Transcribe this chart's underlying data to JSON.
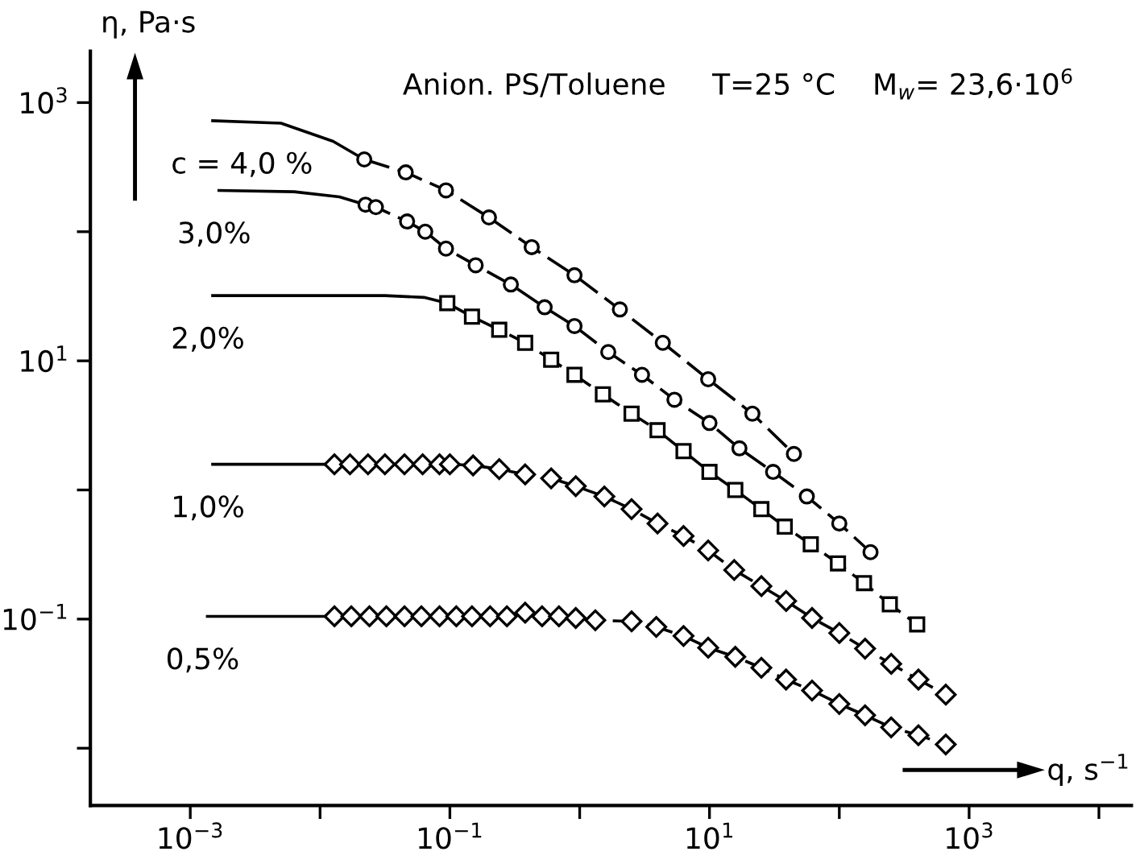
{
  "chart_data": {
    "type": "line",
    "title": "Anion. PS/Toluene     T=25 °C    M$_{w}$= 23,6·10$^{6}$",
    "xlabel": "q, s$^{−1}$",
    "ylabel": "η, Pa·s",
    "log": "xy",
    "grid": false,
    "legend": false,
    "xlim": [
      0.00017,
      17800
    ],
    "ylim": [
      0.0036,
      2500
    ],
    "xticks": [
      {
        "value": 0.001,
        "label": "10$^{−3}$"
      },
      {
        "value": 0.01,
        "label": null
      },
      {
        "value": 0.1,
        "label": "10$^{−1}$"
      },
      {
        "value": 1,
        "label": null
      },
      {
        "value": 10,
        "label": "10$^{1}$"
      },
      {
        "value": 100,
        "label": null
      },
      {
        "value": 1000,
        "label": "10$^{3}$"
      },
      {
        "value": 10000,
        "label": null
      }
    ],
    "yticks": [
      {
        "value": 0.01,
        "label": null
      },
      {
        "value": 0.1,
        "label": "10$^{−1}$"
      },
      {
        "value": 1,
        "label": null
      },
      {
        "value": 10,
        "label": "10$^{1}$"
      },
      {
        "value": 100,
        "label": null
      },
      {
        "value": 1000,
        "label": "10$^{3}$"
      }
    ],
    "series": [
      {
        "name": "c = 4,0 %",
        "color": "#000000",
        "line_style": "solid",
        "marker": "none",
        "x": [
          0.00145,
          0.005,
          0.0126,
          0.0219
        ],
        "values": [
          724,
          692,
          501,
          363
        ]
      },
      {
        "color": "#000000",
        "line_style": "dashed",
        "marker": "circle",
        "x": [
          0.0219,
          0.0457,
          0.0933,
          0.2,
          0.427,
          0.912,
          2.04,
          4.37,
          9.77,
          21.4,
          44.7
        ],
        "values": [
          363,
          288,
          209,
          129,
          76,
          46,
          25,
          13.8,
          7.2,
          3.9,
          1.9
        ]
      },
      {
        "name": "3,0%",
        "color": "#000000",
        "line_style": "solid",
        "marker": "none",
        "x": [
          0.00162,
          0.0063,
          0.0141,
          0.0224
        ],
        "values": [
          209,
          204,
          186,
          162
        ]
      },
      {
        "color": "#000000",
        "line_style": "dashed",
        "marker": "circle",
        "x": [
          0.0224,
          0.0269,
          0.0468,
          0.0646,
          0.0933,
          0.158,
          0.295,
          0.537,
          0.912,
          1.66,
          3.02,
          5.37,
          10.0,
          17.0,
          30.9,
          56.2,
          100,
          174
        ],
        "values": [
          162,
          155,
          120,
          100,
          74,
          55,
          39,
          26,
          18.6,
          11.7,
          7.8,
          5.0,
          3.3,
          2.1,
          1.38,
          0.89,
          0.55,
          0.33
        ]
      },
      {
        "name": "2,0%",
        "color": "#000000",
        "line_style": "solid",
        "marker": "none",
        "x": [
          0.00145,
          0.0316,
          0.0631,
          0.0955
        ],
        "values": [
          32,
          32,
          31,
          28
        ]
      },
      {
        "color": "#000000",
        "line_style": "dashed",
        "marker": "square",
        "x": [
          0.0955,
          0.148,
          0.24,
          0.38,
          0.603,
          0.912,
          1.51,
          2.51,
          3.98,
          6.31,
          10.0,
          15.8,
          25.1,
          38.0,
          60.3,
          97.7,
          155,
          245,
          398
        ],
        "values": [
          28,
          22,
          17.4,
          13.8,
          10.2,
          7.8,
          5.5,
          3.9,
          2.9,
          2.0,
          1.38,
          1.0,
          0.71,
          0.52,
          0.38,
          0.27,
          0.19,
          0.13,
          0.091
        ]
      },
      {
        "name": "1,0%",
        "color": "#000000",
        "line_style": "solid",
        "marker": "none",
        "x": [
          0.00145,
          0.003,
          0.006,
          0.0129
        ],
        "values": [
          1.58,
          1.58,
          1.58,
          1.58
        ]
      },
      {
        "color": "#000000",
        "line_style": "dashed",
        "marker": "diamond",
        "x": [
          0.0129,
          0.017,
          0.0234,
          0.0316,
          0.0447,
          0.0617,
          0.0832,
          0.1,
          0.151,
          0.24,
          0.38,
          0.603,
          0.933,
          1.55,
          2.51,
          3.98,
          6.31,
          9.77,
          15.5,
          25.1,
          38.9,
          61.7,
          100,
          158,
          251,
          407,
          661
        ],
        "values": [
          1.58,
          1.58,
          1.58,
          1.58,
          1.58,
          1.58,
          1.58,
          1.58,
          1.55,
          1.45,
          1.32,
          1.23,
          1.07,
          0.89,
          0.71,
          0.55,
          0.44,
          0.34,
          0.24,
          0.18,
          0.138,
          0.102,
          0.078,
          0.059,
          0.045,
          0.034,
          0.026
        ]
      },
      {
        "name": "0,5%",
        "color": "#000000",
        "line_style": "solid",
        "marker": "none",
        "x": [
          0.00132,
          0.003,
          0.006,
          0.0129
        ],
        "values": [
          0.105,
          0.105,
          0.105,
          0.105
        ]
      },
      {
        "color": "#000000",
        "line_style": "dashed",
        "marker": "diamond",
        "x": [
          0.0129,
          0.0174,
          0.024,
          0.0324,
          0.0447,
          0.0603,
          0.0832,
          0.112,
          0.148,
          0.204,
          0.275,
          0.38,
          0.513,
          0.692,
          0.933,
          1.32,
          2.51,
          3.89,
          6.31,
          9.77,
          15.8,
          25.1,
          38.9,
          61.7,
          100,
          158,
          251,
          407,
          661
        ],
        "values": [
          0.105,
          0.105,
          0.105,
          0.105,
          0.105,
          0.105,
          0.105,
          0.105,
          0.105,
          0.105,
          0.105,
          0.112,
          0.105,
          0.105,
          0.102,
          0.098,
          0.096,
          0.087,
          0.074,
          0.06,
          0.051,
          0.042,
          0.034,
          0.028,
          0.022,
          0.018,
          0.0145,
          0.0126,
          0.0107
        ]
      }
    ]
  }
}
